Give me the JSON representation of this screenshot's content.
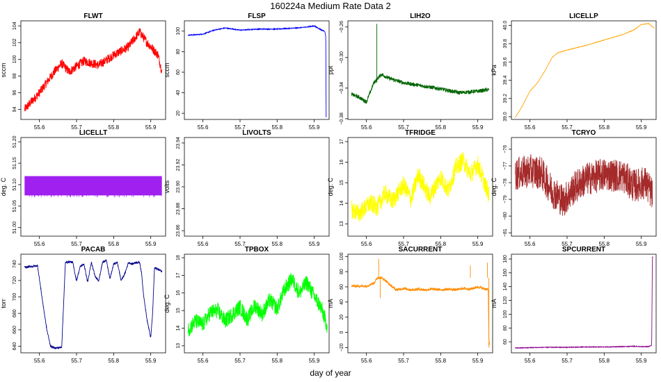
{
  "figure": {
    "title": "160224a   Medium Rate Data 2",
    "xlabel": "day of year"
  },
  "chart_data": [
    {
      "type": "line",
      "title": "FLWT",
      "ylabel": "sccm",
      "color": "#ff0000",
      "xlim": [
        55.55,
        55.94
      ],
      "ylim": [
        92.8,
        104.6
      ],
      "yticks": [
        94,
        96,
        98,
        100,
        102,
        104
      ],
      "xticks": [
        55.6,
        55.7,
        55.8,
        55.9
      ],
      "noise": 1.1,
      "series": [
        {
          "x": [
            55.56,
            55.6,
            55.64,
            55.66,
            55.68,
            55.72,
            55.76,
            55.8,
            55.84,
            55.87,
            55.89,
            55.92,
            55.93
          ],
          "y": [
            94,
            96,
            98.5,
            99.5,
            98.5,
            99.8,
            99.3,
            100.5,
            101.5,
            103.3,
            102,
            100.5,
            98.5
          ]
        }
      ]
    },
    {
      "type": "line",
      "title": "FLSP",
      "ylabel": "sccm",
      "color": "#0000ff",
      "xlim": [
        55.55,
        55.94
      ],
      "ylim": [
        14,
        110
      ],
      "yticks": [
        20,
        40,
        60,
        80,
        100
      ],
      "xticks": [
        55.6,
        55.7,
        55.8,
        55.9
      ],
      "noise": 0.8,
      "series": [
        {
          "x": [
            55.56,
            55.6,
            55.63,
            55.66,
            55.7,
            55.75,
            55.8,
            55.85,
            55.88,
            55.9,
            55.92,
            55.928,
            55.931,
            55.932
          ],
          "y": [
            96,
            97,
            101,
            103,
            101,
            102,
            102,
            103,
            104,
            105,
            101,
            100,
            95,
            16
          ]
        }
      ]
    },
    {
      "type": "line",
      "title": "LIH2O",
      "ylabel": "ppt",
      "color": "#006400",
      "xlim": [
        55.55,
        55.94
      ],
      "ylim": [
        -0.381,
        -0.252
      ],
      "yticks": [
        -0.38,
        -0.34,
        -0.3,
        -0.26
      ],
      "xticks": [
        55.6,
        55.7,
        55.8,
        55.9
      ],
      "noise": 0.005,
      "series": [
        {
          "x": [
            55.56,
            55.58,
            55.6,
            55.62,
            55.64,
            55.66,
            55.7,
            55.75,
            55.8,
            55.85,
            55.9,
            55.93
          ],
          "y": [
            -0.348,
            -0.352,
            -0.358,
            -0.333,
            -0.322,
            -0.327,
            -0.333,
            -0.337,
            -0.341,
            -0.346,
            -0.344,
            -0.342
          ]
        }
      ],
      "spikes": [
        {
          "x": 55.628,
          "y": -0.256
        }
      ]
    },
    {
      "type": "line",
      "title": "LICELLP",
      "ylabel": "kPa",
      "color": "#ffa500",
      "xlim": [
        55.55,
        55.94
      ],
      "ylim": [
        38.97,
        40.05
      ],
      "yticks": [
        39.0,
        39.2,
        39.4,
        39.6,
        39.8,
        40.0
      ],
      "xticks": [
        55.6,
        55.7,
        55.8,
        55.9
      ],
      "noise": 0.004,
      "series": [
        {
          "x": [
            55.56,
            55.58,
            55.6,
            55.62,
            55.64,
            55.66,
            55.675,
            55.7,
            55.75,
            55.8,
            55.85,
            55.88,
            55.9,
            55.92,
            55.935
          ],
          "y": [
            38.99,
            39.12,
            39.28,
            39.37,
            39.5,
            39.65,
            39.7,
            39.73,
            39.78,
            39.84,
            39.9,
            39.95,
            40.01,
            40.02,
            39.97
          ]
        }
      ]
    },
    {
      "type": "line",
      "title": "LICELLT",
      "ylabel": "deg. C",
      "color": "#a020f0",
      "xlim": [
        55.55,
        55.94
      ],
      "ylim": [
        50.98,
        51.21
      ],
      "yticks": [
        51.0,
        51.05,
        51.1,
        51.15,
        51.2
      ],
      "xticks": [
        55.6,
        55.7,
        55.8,
        55.9
      ],
      "band": [
        51.075,
        51.12
      ],
      "series": [
        {
          "x": [
            55.56,
            55.93
          ],
          "y": [
            51.075,
            51.12
          ]
        }
      ]
    },
    {
      "type": "line",
      "title": "LIVOLTS",
      "ylabel": "volts",
      "color": "#000000",
      "xlim": [
        55.55,
        55.94
      ],
      "ylim": [
        23.855,
        23.945
      ],
      "yticks": [
        23.86,
        23.88,
        23.9,
        23.92,
        23.94
      ],
      "xticks": [
        55.6,
        55.7,
        55.8,
        55.9
      ],
      "series": []
    },
    {
      "type": "line",
      "title": "TFRIDGE",
      "ylabel": "deg. C",
      "color": "#ffff00",
      "xlim": [
        55.55,
        55.94
      ],
      "ylim": [
        12.4,
        17.2
      ],
      "yticks": [
        13,
        14,
        15,
        16,
        17
      ],
      "xticks": [
        55.6,
        55.7,
        55.8,
        55.9
      ],
      "noise": 0.9,
      "series": [
        {
          "x": [
            55.56,
            55.58,
            55.61,
            55.63,
            55.65,
            55.67,
            55.7,
            55.72,
            55.74,
            55.77,
            55.8,
            55.82,
            55.84,
            55.86,
            55.88,
            55.9,
            55.93
          ],
          "y": [
            13.7,
            13.5,
            14.0,
            13.8,
            14.5,
            14.1,
            14.9,
            14.2,
            15.4,
            14.3,
            15.3,
            14.6,
            15.7,
            16.1,
            15.4,
            15.9,
            14.4
          ]
        }
      ]
    },
    {
      "type": "line",
      "title": "TCRYO",
      "ylabel": "deg. C",
      "color": "#a52a2a",
      "xlim": [
        55.55,
        55.94
      ],
      "ylim": [
        -81.2,
        -75.3
      ],
      "yticks": [
        -81,
        -80,
        -79,
        -78,
        -77,
        -76
      ],
      "xticks": [
        55.6,
        55.7,
        55.8,
        55.9
      ],
      "noise": 2.0,
      "series": [
        {
          "x": [
            55.56,
            55.6,
            55.63,
            55.66,
            55.69,
            55.72,
            55.75,
            55.8,
            55.85,
            55.88,
            55.91,
            55.93
          ],
          "y": [
            -77.5,
            -77.3,
            -77.4,
            -78.5,
            -79.1,
            -78.3,
            -77.8,
            -77.5,
            -77.6,
            -78.2,
            -78.0,
            -78.7
          ]
        }
      ]
    },
    {
      "type": "line",
      "title": "PACAB",
      "ylabel": "torr",
      "color": "#00008b",
      "xlim": [
        55.55,
        55.94
      ],
      "ylim": [
        632,
        752
      ],
      "yticks": [
        640,
        660,
        680,
        700,
        720,
        740
      ],
      "xticks": [
        55.6,
        55.7,
        55.8,
        55.9
      ],
      "noise": 2.5,
      "series": [
        {
          "x": [
            55.56,
            55.595,
            55.6,
            55.61,
            55.62,
            55.63,
            55.64,
            55.65,
            55.66,
            55.665,
            55.67,
            55.68,
            55.69,
            55.695,
            55.7,
            55.71,
            55.72,
            55.73,
            55.74,
            55.75,
            55.76,
            55.77,
            55.78,
            55.79,
            55.8,
            55.81,
            55.82,
            55.83,
            55.84,
            55.85,
            55.86,
            55.87,
            55.875,
            55.88,
            55.89,
            55.9,
            55.905,
            55.91,
            55.915,
            55.93
          ],
          "y": [
            736,
            738,
            722,
            690,
            660,
            640,
            638,
            638,
            639,
            690,
            742,
            743,
            742,
            730,
            720,
            737,
            740,
            718,
            742,
            725,
            720,
            742,
            745,
            722,
            740,
            742,
            720,
            728,
            742,
            740,
            742,
            742,
            730,
            705,
            672,
            650,
            680,
            735,
            735,
            731
          ]
        }
      ]
    },
    {
      "type": "line",
      "title": "TPBOX",
      "ylabel": "deg. C",
      "color": "#00ff00",
      "xlim": [
        55.55,
        55.94
      ],
      "ylim": [
        12.6,
        18.2
      ],
      "yticks": [
        13,
        14,
        15,
        16,
        17,
        18
      ],
      "xticks": [
        55.6,
        55.7,
        55.8,
        55.9
      ],
      "noise": 0.9,
      "series": [
        {
          "x": [
            55.56,
            55.58,
            55.6,
            55.62,
            55.64,
            55.66,
            55.68,
            55.7,
            55.72,
            55.74,
            55.76,
            55.78,
            55.8,
            55.82,
            55.84,
            55.86,
            55.88,
            55.9,
            55.92,
            55.935
          ],
          "y": [
            13.9,
            14.4,
            14.2,
            14.9,
            15.0,
            14.4,
            14.8,
            15.2,
            14.5,
            15.3,
            14.8,
            15.6,
            15.1,
            16.2,
            16.8,
            16.0,
            16.6,
            15.8,
            15.1,
            14.1
          ]
        }
      ]
    },
    {
      "type": "line",
      "title": "SACURRENT",
      "ylabel": "mA",
      "color": "#ff8c00",
      "xlim": [
        55.55,
        55.94
      ],
      "ylim": [
        -27,
        103
      ],
      "yticks": [
        -20,
        0,
        20,
        40,
        60,
        80,
        100
      ],
      "xticks": [
        55.6,
        55.7,
        55.8,
        55.9
      ],
      "noise": 3.5,
      "series": [
        {
          "x": [
            55.56,
            55.6,
            55.62,
            55.63,
            55.64,
            55.65,
            55.66,
            55.68,
            55.7,
            55.72,
            55.74,
            55.76,
            55.78,
            55.8,
            55.82,
            55.84,
            55.86,
            55.88,
            55.9,
            55.92,
            55.928,
            55.93,
            55.932
          ],
          "y": [
            61,
            61,
            65,
            72,
            72,
            69,
            64,
            56,
            58,
            56,
            57,
            56,
            57,
            56,
            57,
            56,
            58,
            57,
            60,
            57,
            57,
            -10,
            -15
          ]
        }
      ],
      "spikes": [
        {
          "x": 55.633,
          "y": 97
        },
        {
          "x": 55.637,
          "y": 45
        },
        {
          "x": 55.88,
          "y": 88
        },
        {
          "x": 55.926,
          "y": 92
        },
        {
          "x": 55.93,
          "y": -20
        }
      ]
    },
    {
      "type": "line",
      "title": "SPCURRENT",
      "ylabel": "mA",
      "color": "#8b008b",
      "xlim": [
        55.55,
        55.94
      ],
      "ylim": [
        44,
        187
      ],
      "yticks": [
        60,
        80,
        100,
        120,
        140,
        160,
        180
      ],
      "xticks": [
        55.6,
        55.7,
        55.8,
        55.9
      ],
      "noise": 1.0,
      "series": [
        {
          "x": [
            55.56,
            55.6,
            55.65,
            55.7,
            55.75,
            55.8,
            55.85,
            55.88,
            55.9,
            55.92,
            55.928,
            55.93,
            55.932
          ],
          "y": [
            51,
            51.5,
            52,
            52,
            52.5,
            52.5,
            53,
            53.5,
            53,
            53,
            55,
            183,
            183
          ]
        }
      ]
    }
  ]
}
